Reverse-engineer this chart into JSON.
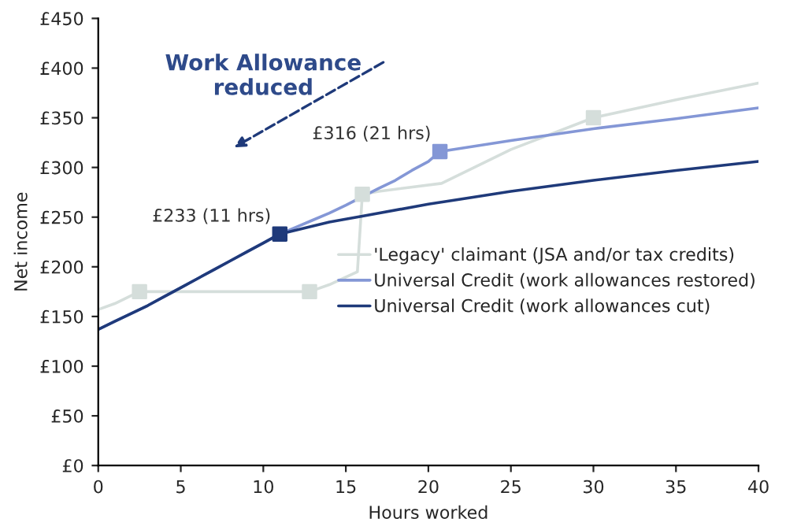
{
  "chart_data": {
    "type": "line",
    "xlabel": "Hours worked",
    "ylabel": "Net income",
    "xlim": [
      0,
      40
    ],
    "xticks": [
      0,
      5,
      10,
      15,
      20,
      25,
      30,
      35,
      40
    ],
    "ylim": [
      0,
      450
    ],
    "yticks": [
      {
        "value": 0,
        "label": "£0"
      },
      {
        "value": 50,
        "label": "£50"
      },
      {
        "value": 100,
        "label": "£100"
      },
      {
        "value": 150,
        "label": "£150"
      },
      {
        "value": 200,
        "label": "£200"
      },
      {
        "value": 250,
        "label": "£250"
      },
      {
        "value": 300,
        "label": "£300"
      },
      {
        "value": 350,
        "label": "£350"
      },
      {
        "value": 400,
        "label": "£400"
      },
      {
        "value": 450,
        "label": "£450"
      }
    ],
    "grid": false,
    "legend": "lower right",
    "line_style": "solid",
    "series": [
      {
        "name": "'Legacy' claimant (JSA and/or tax credits)",
        "color": "#d5dedb",
        "x": [
          0,
          1,
          2,
          2.5,
          12.8,
          14,
          15.7,
          16,
          17,
          20.8,
          25,
          30,
          35,
          40
        ],
        "values": [
          157,
          163,
          171,
          175,
          175,
          182,
          195,
          273,
          276,
          284,
          318,
          350,
          368,
          385
        ]
      },
      {
        "name": "Universal Credit (work allowances restored)",
        "color": "#8497d6",
        "x": [
          0,
          1,
          2,
          3,
          4,
          5,
          6,
          7,
          8,
          9,
          10,
          11,
          12,
          13,
          14,
          15,
          17,
          18,
          19,
          20,
          20.7,
          25,
          30,
          35,
          40
        ],
        "values": [
          137,
          145,
          153,
          161,
          170,
          179,
          188,
          197,
          206,
          215,
          224,
          233,
          240,
          247,
          254,
          262,
          279,
          287,
          297,
          306,
          316,
          327,
          339,
          349,
          360
        ]
      },
      {
        "name": "Universal Credit (work allowances cut)",
        "color": "#1f3a7a",
        "x": [
          0,
          1,
          2,
          3,
          4,
          5,
          6,
          7,
          8,
          9,
          10,
          11,
          14,
          16,
          20,
          25,
          30,
          35,
          40
        ],
        "values": [
          137,
          145,
          153,
          161,
          170,
          179,
          188,
          197,
          206,
          215,
          224,
          233,
          245,
          251,
          263,
          276,
          287,
          297,
          306
        ]
      },
      {
        "type": "scatter",
        "marker": "square",
        "color": "#d5dedb",
        "x": [
          2.5,
          12.8,
          16,
          30
        ],
        "values": [
          175,
          175,
          273,
          350
        ]
      },
      {
        "type": "scatter",
        "marker": "square",
        "color": "#8497d6",
        "x": [
          20.7
        ],
        "values": [
          316
        ]
      },
      {
        "type": "scatter",
        "marker": "square",
        "color": "#1f3a7a",
        "x": [
          11
        ],
        "values": [
          233
        ]
      }
    ],
    "annotations": [
      {
        "text": "£233 (11 hrs)",
        "x": 11,
        "y": 233
      },
      {
        "text": "£316 (21 hrs)",
        "x": 20.7,
        "y": 316
      },
      "Work Allowance\nreduced"
    ]
  }
}
